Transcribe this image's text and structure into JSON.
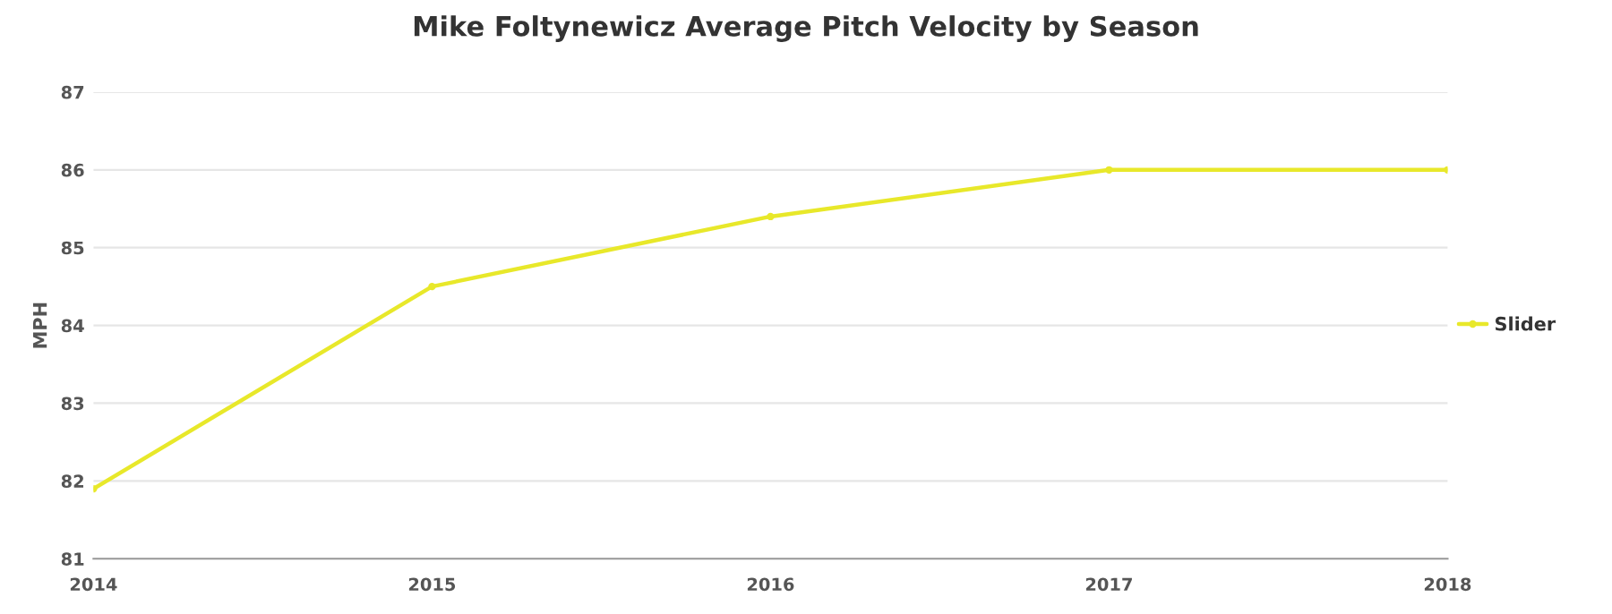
{
  "chart_data": {
    "type": "line",
    "title": "Mike Foltynewicz Average Pitch Velocity by Season",
    "ylabel": "MPH",
    "x": [
      2014,
      2015,
      2016,
      2017,
      2018
    ],
    "series": [
      {
        "name": "Slider",
        "color": "#e8e82a",
        "values": [
          81.9,
          84.5,
          85.4,
          86.0,
          86.0
        ]
      }
    ],
    "xlim": [
      2014,
      2018
    ],
    "xticks": [
      2014,
      2015,
      2016,
      2017,
      2018
    ],
    "ylim": [
      81,
      87
    ],
    "yticks": [
      81,
      82,
      83,
      84,
      85,
      86,
      87
    ],
    "grid": "y",
    "legend": "right",
    "marker": "circle",
    "line_style": "solid"
  }
}
